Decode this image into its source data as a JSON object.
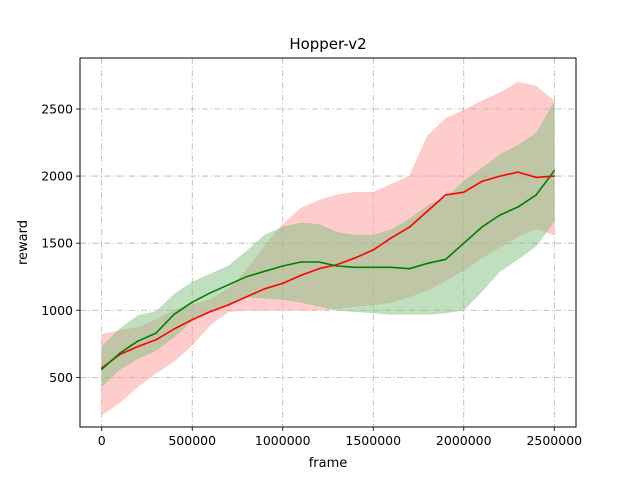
{
  "chart_data": {
    "type": "line",
    "title": "Hopper-v2",
    "xlabel": "frame",
    "ylabel": "reward",
    "xlim": [
      -120000,
      2620000
    ],
    "ylim": [
      130,
      2880
    ],
    "xticks": [
      0,
      500000,
      1000000,
      1500000,
      2000000,
      2500000
    ],
    "yticks": [
      500,
      1000,
      1500,
      2000,
      2500
    ],
    "xtick_labels": [
      "0",
      "500000",
      "1000000",
      "1500000",
      "2000000",
      "2500000"
    ],
    "ytick_labels": [
      "500",
      "1000",
      "1500",
      "2000",
      "2500"
    ],
    "grid": true,
    "legend": null,
    "x": [
      0,
      100000,
      200000,
      300000,
      400000,
      500000,
      600000,
      700000,
      800000,
      900000,
      1000000,
      1100000,
      1200000,
      1300000,
      1400000,
      1500000,
      1600000,
      1700000,
      1800000,
      1900000,
      2000000,
      2100000,
      2200000,
      2300000,
      2400000,
      2500000
    ],
    "series": [
      {
        "color": "#ff0000",
        "band_color": "#ff9999",
        "values": [
          570,
          670,
          730,
          780,
          860,
          930,
          990,
          1040,
          1100,
          1160,
          1200,
          1260,
          1310,
          1340,
          1390,
          1450,
          1540,
          1620,
          1740,
          1860,
          1880,
          1960,
          2000,
          2030,
          1990,
          2000
        ],
        "upper": [
          820,
          850,
          870,
          930,
          1000,
          1040,
          1080,
          1160,
          1300,
          1480,
          1640,
          1760,
          1820,
          1860,
          1880,
          1880,
          1940,
          2000,
          2300,
          2430,
          2490,
          2560,
          2620,
          2700,
          2670,
          2560
        ],
        "lower": [
          220,
          310,
          430,
          530,
          620,
          740,
          890,
          990,
          1000,
          1000,
          1000,
          1000,
          1000,
          1010,
          1030,
          1040,
          1060,
          1100,
          1150,
          1220,
          1300,
          1390,
          1470,
          1550,
          1610,
          1560
        ]
      },
      {
        "color": "#008000",
        "band_color": "#7fbf7f",
        "values": [
          560,
          680,
          770,
          830,
          970,
          1060,
          1130,
          1190,
          1250,
          1290,
          1330,
          1360,
          1360,
          1330,
          1320,
          1320,
          1320,
          1310,
          1350,
          1380,
          1500,
          1620,
          1710,
          1770,
          1860,
          2040
        ],
        "upper": [
          730,
          860,
          960,
          990,
          1120,
          1210,
          1270,
          1330,
          1440,
          1560,
          1620,
          1650,
          1640,
          1580,
          1560,
          1560,
          1600,
          1680,
          1780,
          1840,
          1960,
          2060,
          2160,
          2230,
          2320,
          2550
        ],
        "lower": [
          430,
          560,
          640,
          700,
          800,
          920,
          1000,
          1050,
          1100,
          1090,
          1080,
          1060,
          1030,
          1000,
          990,
          980,
          970,
          970,
          970,
          980,
          1000,
          1140,
          1290,
          1380,
          1480,
          1660
        ]
      }
    ]
  }
}
